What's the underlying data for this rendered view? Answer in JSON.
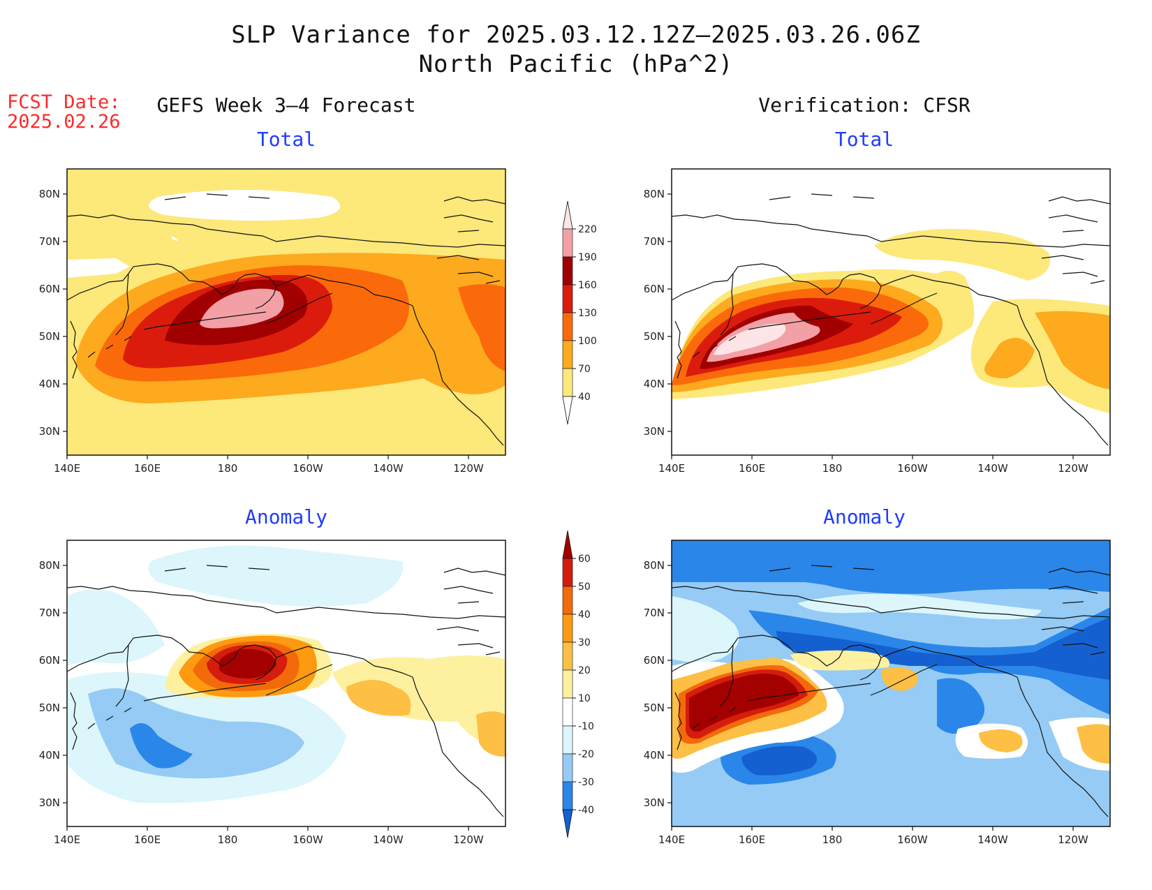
{
  "title": {
    "line1": "SLP Variance for 2025.03.12.12Z–2025.03.26.06Z",
    "line2": "North Pacific (hPa^2)"
  },
  "fcst": {
    "label": "FCST Date:",
    "date": "2025.02.26"
  },
  "columns": {
    "forecast": "GEFS Week 3–4 Forecast",
    "verification": "Verification: CFSR"
  },
  "rows": {
    "total": "Total",
    "anomaly": "Anomaly"
  },
  "axes": {
    "lat_labels": [
      "80N",
      "70N",
      "60N",
      "50N",
      "40N",
      "30N"
    ],
    "lon_labels": [
      "140E",
      "160E",
      "180",
      "160W",
      "140W",
      "120W"
    ]
  },
  "colorbars": {
    "total": {
      "levels": [
        "40",
        "70",
        "100",
        "130",
        "160",
        "190",
        "220"
      ],
      "colors": [
        "#ffffff",
        "#fde87a",
        "#fdaa1e",
        "#fb6a0a",
        "#db1c0c",
        "#a00000",
        "#f2a0a6",
        "#fde4e6"
      ]
    },
    "anomaly": {
      "levels": [
        "-40",
        "-30",
        "-20",
        "-10",
        "10",
        "20",
        "30",
        "40",
        "50",
        "60"
      ],
      "colors": [
        "#1460d0",
        "#2a86e8",
        "#95cbf5",
        "#dcf6fb",
        "#ffffff",
        "#fdf1a0",
        "#fdbf44",
        "#fd9a10",
        "#f36a0a",
        "#d41d0d",
        "#a30000"
      ]
    }
  }
}
